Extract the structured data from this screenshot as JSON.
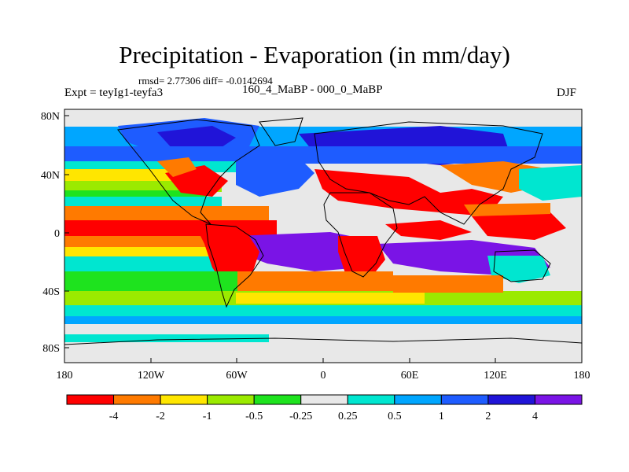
{
  "title": "Precipitation - Evaporation (in mm/day)",
  "stats": "rmsd= 2.77306 diff= -0.0142694",
  "left_label": "Expt = teyIg1-teyfa3",
  "center_label": "160_4_MaBP - 000_0_MaBP",
  "right_label": "DJF",
  "axes": {
    "x_ticks": [
      "180",
      "120W",
      "60W",
      "0",
      "60E",
      "120E",
      "180"
    ],
    "y_ticks": [
      "80N",
      "40N",
      "0",
      "40S",
      "80S"
    ],
    "lon_range": [
      -180,
      180
    ],
    "lat_range": [
      -90,
      90
    ]
  },
  "colorbar": {
    "labels": [
      "-4",
      "-2",
      "-1",
      "-0.5",
      "-0.25",
      "0.25",
      "0.5",
      "1",
      "2",
      "4"
    ],
    "colors": [
      "#ff0000",
      "#ff7a00",
      "#ffe600",
      "#9bea00",
      "#1ee31e",
      "#e8e8e8",
      "#00e6d0",
      "#00a6ff",
      "#1e5cff",
      "#2014d8",
      "#7a14e6"
    ]
  }
}
